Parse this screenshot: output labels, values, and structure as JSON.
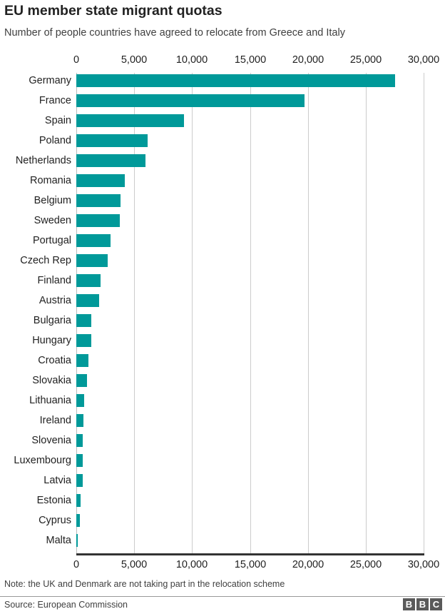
{
  "header": {
    "title": "EU member state migrant quotas",
    "subtitle": "Number of people countries have agreed to relocate from Greece and Italy"
  },
  "footer": {
    "note": "Note: the UK and Denmark are not taking part in the relocation scheme",
    "source": "Source: European Commission",
    "logo": [
      "B",
      "B",
      "C"
    ]
  },
  "colors": {
    "bar": "#009999",
    "grid": "#cccccc",
    "axis": "#333333"
  },
  "chart_data": {
    "type": "bar",
    "orientation": "horizontal",
    "title": "EU member state migrant quotas",
    "subtitle": "Number of people countries have agreed to relocate from Greece and Italy",
    "xlabel": "",
    "ylabel": "",
    "xlim": [
      0,
      30000
    ],
    "xticks": [
      0,
      5000,
      10000,
      15000,
      20000,
      25000,
      30000
    ],
    "xtick_labels": [
      "0",
      "5,000",
      "10,000",
      "15,000",
      "20,000",
      "25,000",
      "30,000"
    ],
    "grid": true,
    "legend": null,
    "categories": [
      "Germany",
      "France",
      "Spain",
      "Poland",
      "Netherlands",
      "Romania",
      "Belgium",
      "Sweden",
      "Portugal",
      "Czech Rep",
      "Finland",
      "Austria",
      "Bulgaria",
      "Hungary",
      "Croatia",
      "Slovakia",
      "Lithuania",
      "Ireland",
      "Slovenia",
      "Luxembourg",
      "Latvia",
      "Estonia",
      "Cyprus",
      "Malta"
    ],
    "values": [
      27536,
      19714,
      9323,
      6182,
      5947,
      4180,
      3812,
      3766,
      2951,
      2691,
      2078,
      1953,
      1302,
      1294,
      1064,
      902,
      671,
      600,
      567,
      557,
      526,
      373,
      320,
      133
    ],
    "annotations": [
      "Note: the UK and Denmark are not taking part in the relocation scheme",
      "Source: European Commission"
    ]
  }
}
